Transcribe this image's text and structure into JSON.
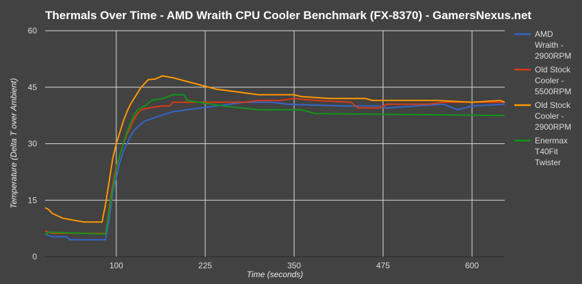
{
  "chart_data": {
    "type": "line",
    "title": "Thermals Over Time - AMD Wraith CPU Cooler Benchmark (FX-8370) - GamersNexus.net",
    "xlabel": "Time (seconds)",
    "ylabel": "Temperature (Delta T over Ambient)",
    "xlim": [
      0,
      646
    ],
    "ylim": [
      0,
      60
    ],
    "xticks": [
      100,
      225,
      350,
      475,
      600
    ],
    "yticks": [
      0,
      15,
      30,
      45,
      60
    ],
    "grid": true,
    "legend_placement": "right",
    "background": "#424242",
    "series": [
      {
        "name": "AMD Wraith - 2900RPM",
        "legend_lines": [
          "AMD",
          "Wraith -",
          "2900RPM"
        ],
        "color": "#3366cc",
        "points": [
          [
            0,
            6
          ],
          [
            10,
            5.3
          ],
          [
            30,
            5.3
          ],
          [
            35,
            4.5
          ],
          [
            85,
            4.5
          ],
          [
            90,
            10
          ],
          [
            95,
            17
          ],
          [
            100,
            21
          ],
          [
            105,
            25
          ],
          [
            110,
            28
          ],
          [
            115,
            30
          ],
          [
            120,
            32
          ],
          [
            125,
            33.5
          ],
          [
            130,
            34.5
          ],
          [
            140,
            36
          ],
          [
            155,
            37
          ],
          [
            180,
            38.5
          ],
          [
            200,
            39
          ],
          [
            220,
            39.5
          ],
          [
            240,
            40
          ],
          [
            280,
            41
          ],
          [
            320,
            41
          ],
          [
            340,
            40.5
          ],
          [
            420,
            40
          ],
          [
            470,
            40
          ],
          [
            480,
            39.5
          ],
          [
            520,
            40
          ],
          [
            560,
            40.5
          ],
          [
            580,
            39
          ],
          [
            600,
            40
          ],
          [
            646,
            40.5
          ]
        ]
      },
      {
        "name": "Old Stock Cooler - 5500RPM",
        "legend_lines": [
          "Old Stock",
          "Cooler -",
          "5500RPM"
        ],
        "color": "#dc3912",
        "points": [
          [
            0,
            6.8
          ],
          [
            10,
            6.2
          ],
          [
            85,
            6.2
          ],
          [
            90,
            13
          ],
          [
            95,
            19
          ],
          [
            100,
            24
          ],
          [
            105,
            27
          ],
          [
            110,
            30
          ],
          [
            115,
            32.5
          ],
          [
            120,
            34.5
          ],
          [
            125,
            36.5
          ],
          [
            130,
            38
          ],
          [
            135,
            39
          ],
          [
            145,
            39.5
          ],
          [
            165,
            40
          ],
          [
            175,
            40
          ],
          [
            180,
            41
          ],
          [
            280,
            41
          ],
          [
            300,
            41.5
          ],
          [
            330,
            41.5
          ],
          [
            350,
            42
          ],
          [
            380,
            41.5
          ],
          [
            430,
            41
          ],
          [
            440,
            39.5
          ],
          [
            470,
            39.5
          ],
          [
            480,
            40.5
          ],
          [
            540,
            40.5
          ],
          [
            560,
            41
          ],
          [
            646,
            41
          ]
        ]
      },
      {
        "name": "Old Stock Cooler - 2900RPM",
        "legend_lines": [
          "Old Stock",
          "Cooler -",
          "2900RPM"
        ],
        "color": "#ff9900",
        "points": [
          [
            0,
            13
          ],
          [
            5,
            12.5
          ],
          [
            10,
            11.5
          ],
          [
            25,
            10.2
          ],
          [
            55,
            9.2
          ],
          [
            80,
            9.2
          ],
          [
            85,
            14
          ],
          [
            90,
            20
          ],
          [
            95,
            26
          ],
          [
            100,
            30
          ],
          [
            105,
            33
          ],
          [
            110,
            36
          ],
          [
            115,
            38.5
          ],
          [
            120,
            40.5
          ],
          [
            125,
            42
          ],
          [
            130,
            43.5
          ],
          [
            135,
            45
          ],
          [
            140,
            46
          ],
          [
            145,
            47
          ],
          [
            155,
            47.2
          ],
          [
            165,
            48
          ],
          [
            180,
            47.5
          ],
          [
            200,
            46.5
          ],
          [
            220,
            45.5
          ],
          [
            240,
            44.5
          ],
          [
            260,
            44
          ],
          [
            280,
            43.5
          ],
          [
            300,
            43
          ],
          [
            350,
            43
          ],
          [
            360,
            42.5
          ],
          [
            400,
            42
          ],
          [
            450,
            42
          ],
          [
            460,
            41.5
          ],
          [
            550,
            41.5
          ],
          [
            600,
            41
          ],
          [
            640,
            41.5
          ],
          [
            646,
            41
          ]
        ]
      },
      {
        "name": "Enermax T40Fit Twister",
        "legend_lines": [
          "Enermax",
          "T40Fit",
          "Twister"
        ],
        "color": "#109618",
        "points": [
          [
            0,
            6
          ],
          [
            5,
            6.5
          ],
          [
            85,
            6
          ],
          [
            90,
            12
          ],
          [
            95,
            18
          ],
          [
            100,
            23
          ],
          [
            105,
            27
          ],
          [
            110,
            30
          ],
          [
            115,
            33
          ],
          [
            120,
            35.5
          ],
          [
            125,
            37.5
          ],
          [
            130,
            39
          ],
          [
            140,
            40
          ],
          [
            150,
            41.5
          ],
          [
            165,
            42
          ],
          [
            180,
            43
          ],
          [
            195,
            43
          ],
          [
            200,
            41.5
          ],
          [
            250,
            40
          ],
          [
            300,
            39
          ],
          [
            360,
            39
          ],
          [
            380,
            38
          ],
          [
            646,
            37.5
          ]
        ]
      }
    ]
  }
}
